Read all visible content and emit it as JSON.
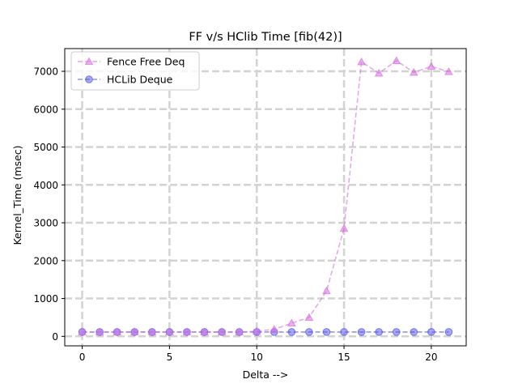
{
  "chart_data": {
    "type": "line",
    "title": "FF v/s HClib Time [fib(42)]",
    "xlabel": "Delta -->",
    "ylabel": "Kernel_Time (msec)",
    "xlim": [
      -1,
      22
    ],
    "ylim": [
      -250,
      7600
    ],
    "xticks": [
      0,
      5,
      10,
      15,
      20
    ],
    "yticks": [
      0,
      1000,
      2000,
      3000,
      4000,
      5000,
      6000,
      7000
    ],
    "grid": true,
    "legend": "top-left",
    "x": [
      0,
      1,
      2,
      3,
      4,
      5,
      6,
      7,
      8,
      9,
      10,
      11,
      12,
      13,
      14,
      15,
      16,
      17,
      18,
      19,
      20,
      21
    ],
    "series": [
      {
        "name": "Fence Free Deq",
        "marker": "triangle",
        "line_style": "dashed",
        "color": "#d66fe0",
        "values": [
          115,
          115,
          115,
          115,
          115,
          115,
          115,
          115,
          115,
          115,
          135,
          185,
          350,
          500,
          1200,
          2850,
          7250,
          6950,
          7280,
          6970,
          7130,
          6990
        ]
      },
      {
        "name": "HCLib Deque",
        "marker": "circle",
        "line_style": "dashed",
        "color": "#4f4fe6",
        "values": [
          115,
          115,
          115,
          115,
          115,
          115,
          115,
          115,
          115,
          115,
          115,
          115,
          115,
          115,
          115,
          115,
          115,
          115,
          115,
          115,
          115,
          115
        ]
      }
    ]
  }
}
